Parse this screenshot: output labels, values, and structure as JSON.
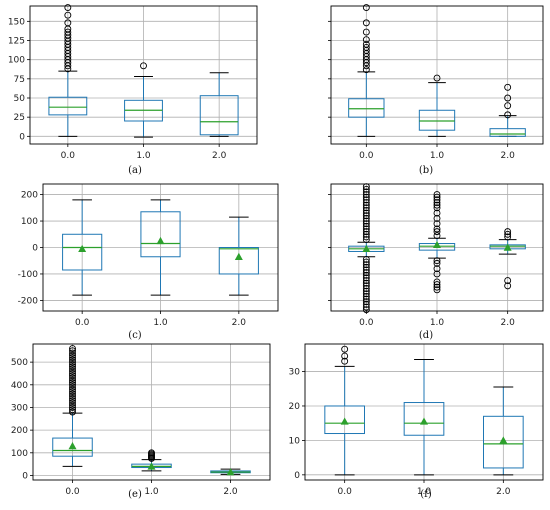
{
  "colors": {
    "box": "#1f77b4",
    "median": "#2ca02c",
    "mean": "#2ca02c",
    "grid": "#b0b0b0",
    "frame": "#000000",
    "outlier": "#000000"
  },
  "chart_data": [
    {
      "caption": "(a)",
      "type": "box",
      "categories": [
        "0.0",
        "1.0",
        "2.0"
      ],
      "ylim": [
        -10,
        170
      ],
      "yticks": [
        0,
        25,
        50,
        75,
        100,
        125,
        150
      ],
      "show_ytick_labels": true,
      "show_mean": false,
      "grid": true,
      "boxes": [
        {
          "whislo": 0,
          "q1": 28,
          "med": 38,
          "q3": 51,
          "whishi": 85,
          "fliers": [
            88,
            92,
            96,
            100,
            104,
            108,
            112,
            116,
            120,
            124,
            128,
            132,
            136,
            140,
            148,
            158,
            168
          ]
        },
        {
          "whislo": -1,
          "q1": 20,
          "med": 34,
          "q3": 47,
          "whishi": 78,
          "fliers": [
            92
          ]
        },
        {
          "whislo": 0,
          "q1": 2,
          "med": 19,
          "q3": 53,
          "whishi": 83,
          "fliers": []
        }
      ]
    },
    {
      "caption": "(b)",
      "type": "box",
      "categories": [
        "0.0",
        "1.0",
        "2.0"
      ],
      "ylim": [
        -10,
        170
      ],
      "yticks": [
        0,
        25,
        50,
        75,
        100,
        125,
        150
      ],
      "show_ytick_labels": false,
      "show_mean": false,
      "grid": true,
      "boxes": [
        {
          "whislo": 0,
          "q1": 25,
          "med": 36,
          "q3": 49,
          "whishi": 84,
          "fliers": [
            87,
            92,
            96,
            100,
            104,
            108,
            112,
            116,
            120,
            126,
            136,
            148,
            168
          ]
        },
        {
          "whislo": 0,
          "q1": 8,
          "med": 20,
          "q3": 34,
          "whishi": 70,
          "fliers": [
            76
          ]
        },
        {
          "whislo": 0,
          "q1": 0,
          "med": 3,
          "q3": 10,
          "whishi": 27,
          "fliers": [
            28,
            40,
            50,
            64
          ]
        }
      ]
    },
    {
      "caption": "(c)",
      "type": "box",
      "categories": [
        "0.0",
        "1.0",
        "2.0"
      ],
      "ylim": [
        -240,
        240
      ],
      "yticks": [
        -200,
        -100,
        0,
        100,
        200
      ],
      "show_ytick_labels": true,
      "show_mean": true,
      "grid": true,
      "boxes": [
        {
          "whislo": -180,
          "q1": -85,
          "med": 0,
          "q3": 50,
          "whishi": 180,
          "mean": -5,
          "fliers": []
        },
        {
          "whislo": -180,
          "q1": -35,
          "med": 15,
          "q3": 135,
          "whishi": 180,
          "mean": 25,
          "fliers": []
        },
        {
          "whislo": -180,
          "q1": -100,
          "med": -5,
          "q3": 0,
          "whishi": 115,
          "mean": -35,
          "fliers": []
        }
      ]
    },
    {
      "caption": "(d)",
      "type": "box",
      "categories": [
        "0.0",
        "1.0",
        "2.0"
      ],
      "ylim": [
        -240,
        240
      ],
      "yticks": [
        -200,
        -100,
        0,
        100,
        200
      ],
      "show_ytick_labels": false,
      "show_mean": true,
      "grid": true,
      "boxes": [
        {
          "whislo": -35,
          "q1": -15,
          "med": -5,
          "q3": 5,
          "whishi": 20,
          "mean": -5,
          "fliers": [
            -235,
            -225,
            -215,
            -205,
            -195,
            -185,
            -175,
            -165,
            -155,
            -145,
            -135,
            -125,
            -115,
            -105,
            -95,
            -85,
            -75,
            -65,
            -55,
            -45,
            30,
            40,
            50,
            60,
            70,
            80,
            90,
            100,
            110,
            120,
            130,
            140,
            150,
            160,
            170,
            180,
            190,
            200,
            210,
            220,
            230
          ]
        },
        {
          "whislo": -40,
          "q1": -10,
          "med": 5,
          "q3": 15,
          "whishi": 35,
          "mean": 10,
          "fliers": [
            -160,
            -150,
            -140,
            -130,
            -100,
            -80,
            -60,
            -50,
            45,
            60,
            70,
            90,
            110,
            130,
            150,
            160,
            170,
            180,
            190,
            200
          ]
        },
        {
          "whislo": -25,
          "q1": -5,
          "med": 5,
          "q3": 10,
          "whishi": 30,
          "mean": 0,
          "fliers": [
            -145,
            -125,
            40,
            50,
            60
          ]
        }
      ]
    },
    {
      "caption": "(e)",
      "type": "box",
      "categories": [
        "0.0",
        "1.0",
        "2.0"
      ],
      "ylim": [
        -20,
        580
      ],
      "yticks": [
        0,
        100,
        200,
        300,
        400,
        500
      ],
      "show_ytick_labels": true,
      "show_mean": true,
      "grid": true,
      "boxes": [
        {
          "whislo": 40,
          "q1": 85,
          "med": 110,
          "q3": 165,
          "whishi": 275,
          "mean": 130,
          "fliers": [
            280,
            290,
            300,
            310,
            320,
            330,
            340,
            350,
            360,
            370,
            380,
            390,
            400,
            410,
            420,
            430,
            440,
            450,
            460,
            470,
            480,
            490,
            500,
            510,
            520,
            530,
            540,
            550,
            560
          ]
        },
        {
          "whislo": 20,
          "q1": 35,
          "med": 40,
          "q3": 50,
          "whishi": 70,
          "mean": 40,
          "fliers": [
            75,
            80,
            85,
            90,
            95,
            100
          ]
        },
        {
          "whislo": 5,
          "q1": 12,
          "med": 15,
          "q3": 20,
          "whishi": 28,
          "mean": 15,
          "fliers": []
        }
      ]
    },
    {
      "caption": "(f)",
      "type": "box",
      "categories": [
        "0.0",
        "1.0",
        "2.0"
      ],
      "ylim": [
        -1.5,
        38
      ],
      "yticks": [
        0,
        10,
        20,
        30
      ],
      "show_ytick_labels": true,
      "show_mean": true,
      "grid": true,
      "boxes": [
        {
          "whislo": 0,
          "q1": 12,
          "med": 15,
          "q3": 20,
          "whishi": 31.5,
          "mean": 15.5,
          "fliers": [
            33,
            34.5,
            36.5
          ]
        },
        {
          "whislo": 0,
          "q1": 11.5,
          "med": 15,
          "q3": 21,
          "whishi": 33.5,
          "mean": 15.5,
          "fliers": []
        },
        {
          "whislo": 0,
          "q1": 2,
          "med": 9,
          "q3": 17,
          "whishi": 25.5,
          "mean": 10,
          "fliers": []
        }
      ]
    }
  ]
}
